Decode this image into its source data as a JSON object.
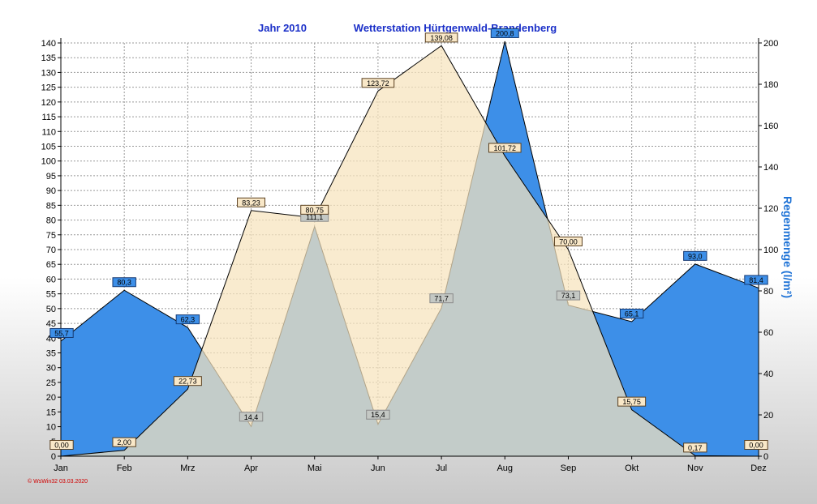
{
  "chart_data": {
    "type": "area",
    "title_left": "Jahr  2010",
    "title_right": "Wetterstation Hürtgenwald-Brandenberg",
    "categories": [
      "Jan",
      "Feb",
      "Mrz",
      "Apr",
      "Mai",
      "Jun",
      "Jul",
      "Aug",
      "Sep",
      "Okt",
      "Nov",
      "Dez"
    ],
    "y_left": {
      "ylim": [
        0,
        140
      ],
      "step": 5,
      "label": "",
      "label_color": "#e8c898"
    },
    "y_right": {
      "ylim": [
        0,
        200
      ],
      "step": 20,
      "label": "Regenmenge  (l/m²)",
      "label_color": "#1f73d6"
    },
    "grid": true,
    "series": [
      {
        "axis": "right",
        "color": "#3d8fe8",
        "values": [
          55.7,
          80.3,
          62.3,
          14.4,
          111.1,
          15.4,
          71.7,
          200.8,
          73.1,
          65.1,
          93.0,
          81.4
        ],
        "labels": [
          "55,7",
          "80,3",
          "62,3",
          "14,4",
          "111,1",
          "15,4",
          "71,7",
          "200,8",
          "73,1",
          "65,1",
          "93,0",
          "81,4"
        ]
      },
      {
        "axis": "left",
        "color": "#f7e3bc",
        "values": [
          0.0,
          2.0,
          22.73,
          83.23,
          80.75,
          123.72,
          139.08,
          101.72,
          70.0,
          15.75,
          0.17,
          0.0
        ],
        "labels": [
          "0,00",
          "2,00",
          "22,73",
          "83,23",
          "80,75",
          "123,72",
          "139,08",
          "101,72",
          "70,00",
          "15,75",
          "0,17",
          "0,00"
        ]
      }
    ]
  },
  "footer": {
    "text": "© WsWin32  03.03.2020"
  }
}
